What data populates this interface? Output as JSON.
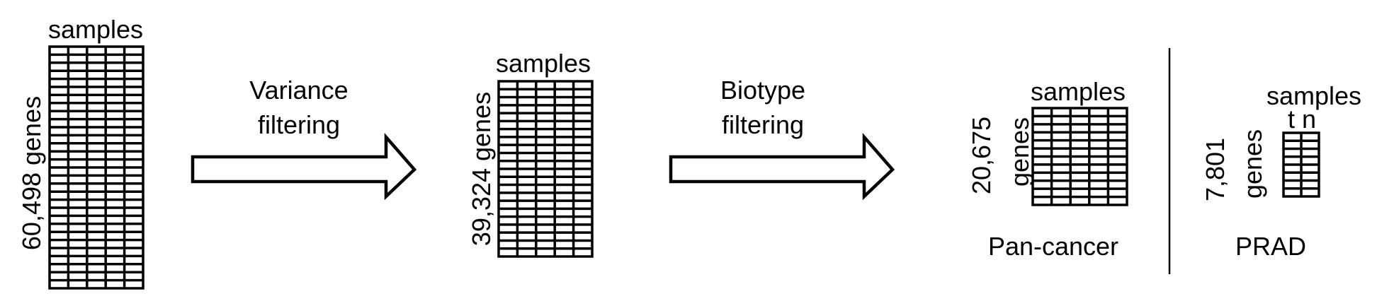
{
  "stage1": {
    "samples_label": "samples",
    "genes_label": "60,498 genes"
  },
  "step1": {
    "label_line1": "Variance",
    "label_line2": "filtering"
  },
  "stage2": {
    "samples_label": "samples",
    "genes_label": "39,324 genes"
  },
  "step2": {
    "label_line1": "Biotype",
    "label_line2": "filtering"
  },
  "pancancer": {
    "samples_label": "samples",
    "genes_count": "20,675",
    "genes_word": "genes",
    "caption": "Pan-cancer"
  },
  "prad": {
    "samples_label": "samples",
    "tumor_label": "t",
    "normal_label": "n",
    "genes_count": "7,801",
    "genes_word": "genes",
    "caption": "PRAD"
  },
  "colors": {
    "ink": "#000000",
    "background": "#ffffff"
  }
}
